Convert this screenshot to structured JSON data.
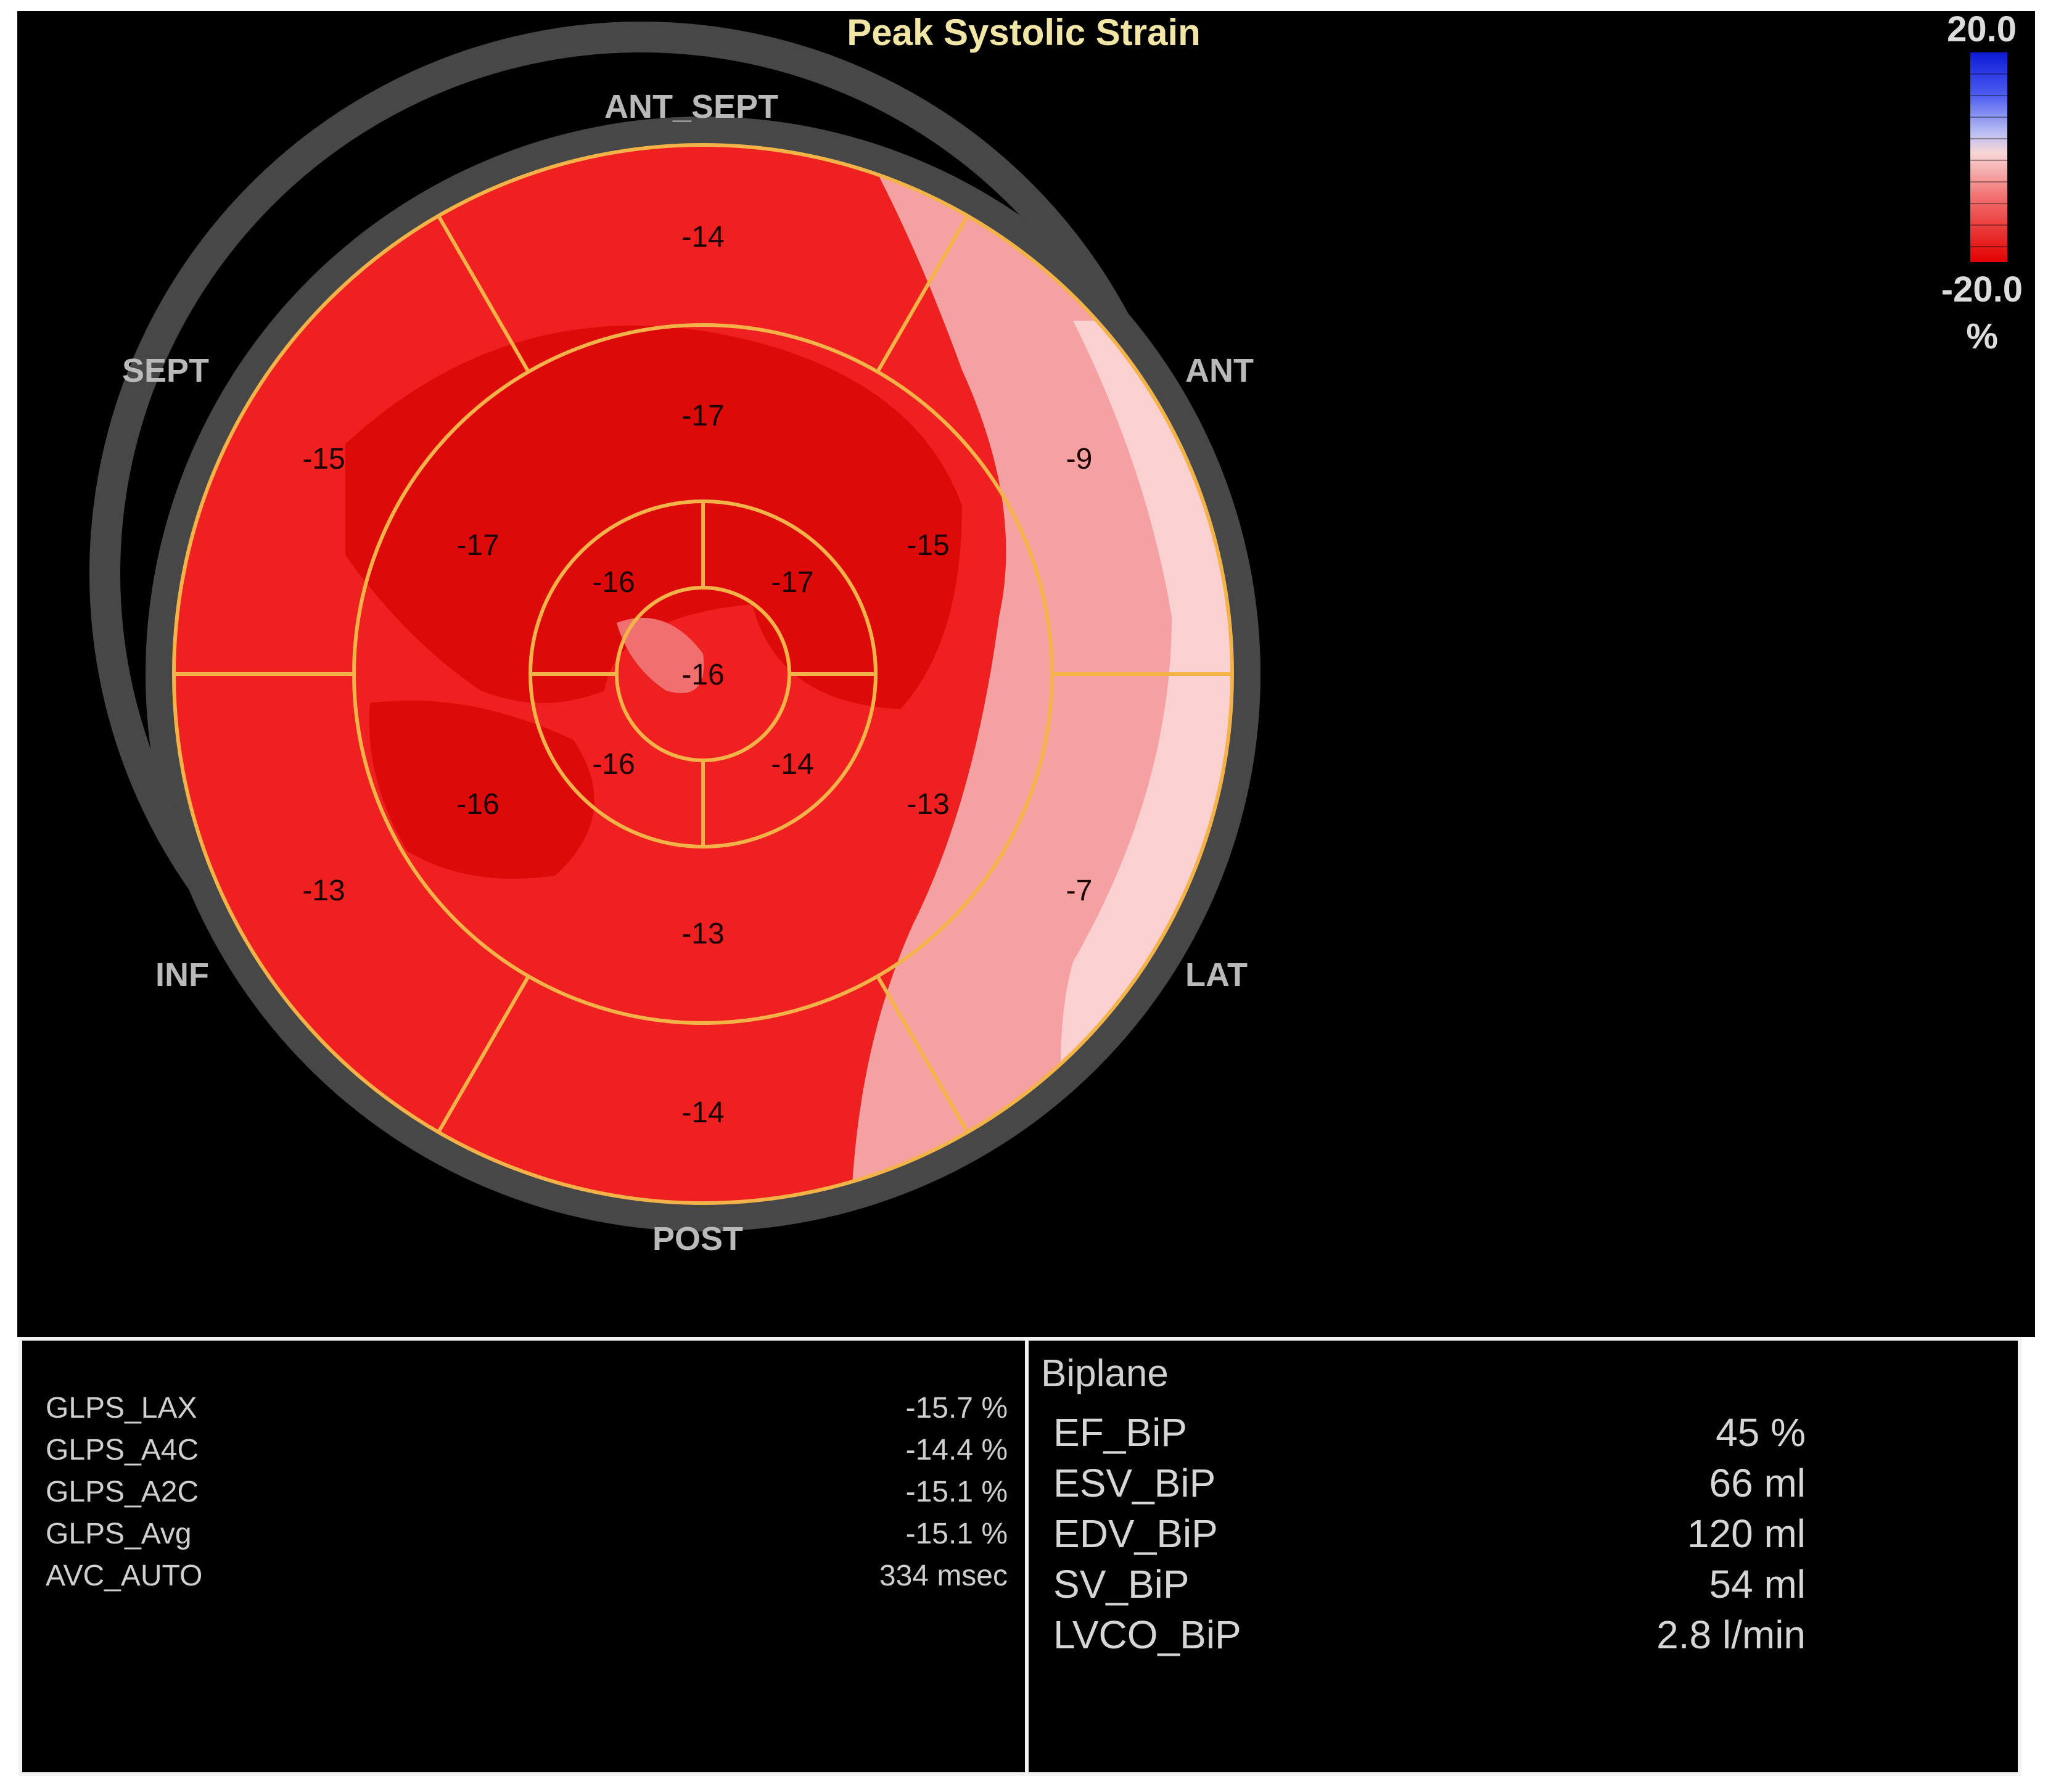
{
  "title": "Peak Systolic Strain",
  "directions": {
    "top": "ANT_SEPT",
    "upper_left": "SEPT",
    "upper_right": "ANT",
    "lower_left": "INF",
    "lower_right": "LAT",
    "bottom": "POST"
  },
  "scale": {
    "max": "20.0",
    "min": "-20.0",
    "unit": "%"
  },
  "colors": {
    "background": "#000000",
    "segment_base": "#ee2020",
    "segment_dark": "#dd0a0a",
    "segment_pale": "#f6a1a1",
    "segment_lines": "#f3b348",
    "ring": "#474747"
  },
  "segments": {
    "outer": [
      "-14",
      "-9",
      "-7",
      "-14",
      "-13",
      "-15"
    ],
    "middle": [
      "-17",
      "-15",
      "-13",
      "-13",
      "-16",
      "-17"
    ],
    "inner": [
      "-17",
      "-14",
      "-16",
      "-16"
    ],
    "apex": "-16"
  },
  "global_strain": [
    {
      "label": "GLPS_LAX",
      "value": "-15.7 %"
    },
    {
      "label": "GLPS_A4C",
      "value": "-14.4 %"
    },
    {
      "label": "GLPS_A2C",
      "value": "-15.1 %"
    },
    {
      "label": "GLPS_Avg",
      "value": "-15.1 %"
    },
    {
      "label": "AVC_AUTO",
      "value": "334 msec"
    }
  ],
  "biplane": {
    "heading": "Biplane",
    "rows": [
      {
        "label": "EF_BiP",
        "value": "45 %"
      },
      {
        "label": "ESV_BiP",
        "value": "66 ml"
      },
      {
        "label": "EDV_BiP",
        "value": "120 ml"
      },
      {
        "label": "SV_BiP",
        "value": "54 ml"
      },
      {
        "label": "LVCO_BiP",
        "value": "2.8 l/min"
      }
    ]
  }
}
